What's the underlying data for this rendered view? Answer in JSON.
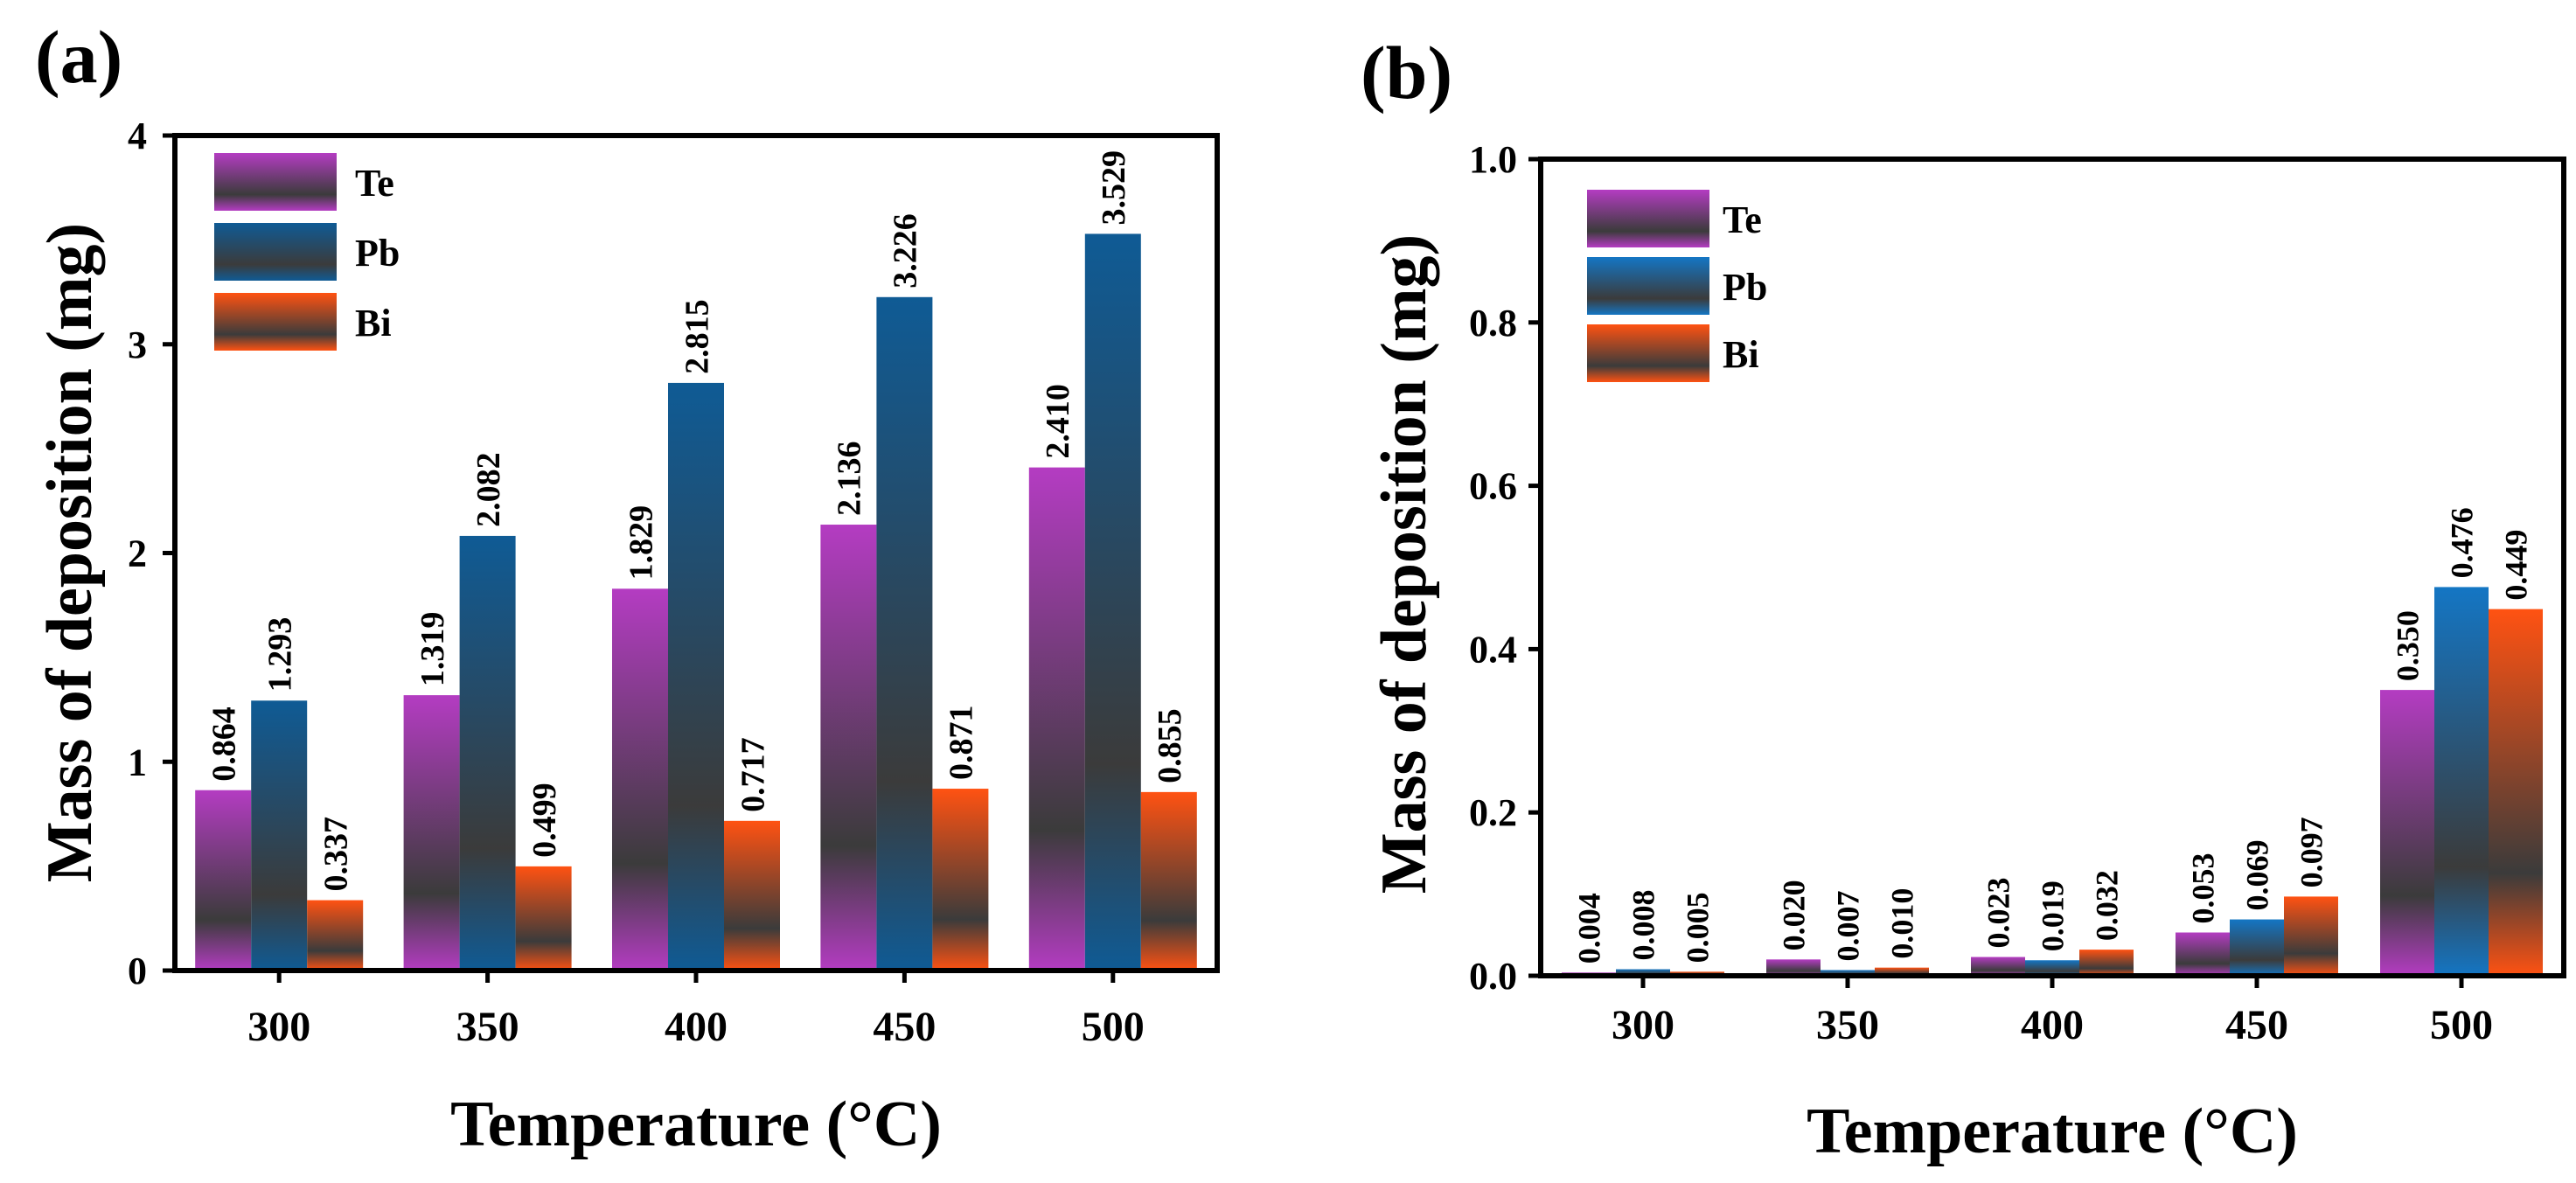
{
  "panels": [
    {
      "label": "(a)"
    },
    {
      "label": "(b)"
    }
  ],
  "colors": {
    "Te": "#b43cc2",
    "Pb": "#0f5b95",
    "Bi": "#ff5212",
    "Pb_b": "#1476c4",
    "fade": "#3b3b3b"
  },
  "chart_data": [
    {
      "type": "bar",
      "panel": "(a)",
      "categories": [
        "300",
        "350",
        "400",
        "450",
        "500"
      ],
      "series": [
        {
          "name": "Te",
          "values": [
            0.864,
            1.319,
            1.829,
            2.136,
            2.41
          ],
          "labels": [
            "0.864",
            "1.319",
            "1.829",
            "2.136",
            "2.410"
          ]
        },
        {
          "name": "Pb",
          "values": [
            1.293,
            2.082,
            2.815,
            3.226,
            3.529
          ],
          "labels": [
            "1.293",
            "2.082",
            "2.815",
            "3.226",
            "3.529"
          ]
        },
        {
          "name": "Bi",
          "values": [
            0.337,
            0.499,
            0.717,
            0.871,
            0.855
          ],
          "labels": [
            "0.337",
            "0.499",
            "0.717",
            "0.871",
            "0.855"
          ]
        }
      ],
      "xlabel": "Temperature (°C)",
      "ylabel": "Mass of deposition (mg)",
      "ylim": [
        0,
        4
      ],
      "yticks": [
        "0",
        "1",
        "2",
        "3",
        "4"
      ],
      "legend": "top-left"
    },
    {
      "type": "bar",
      "panel": "(b)",
      "categories": [
        "300",
        "350",
        "400",
        "450",
        "500"
      ],
      "series": [
        {
          "name": "Te",
          "values": [
            0.004,
            0.02,
            0.023,
            0.053,
            0.35
          ],
          "labels": [
            "0.004",
            "0.020",
            "0.023",
            "0.053",
            "0.350"
          ]
        },
        {
          "name": "Pb",
          "values": [
            0.008,
            0.007,
            0.019,
            0.069,
            0.476
          ],
          "labels": [
            "0.008",
            "0.007",
            "0.019",
            "0.069",
            "0.476"
          ]
        },
        {
          "name": "Bi",
          "values": [
            0.005,
            0.01,
            0.032,
            0.097,
            0.449
          ],
          "labels": [
            "0.005",
            "0.010",
            "0.032",
            "0.097",
            "0.449"
          ]
        }
      ],
      "xlabel": "Temperature (°C)",
      "ylabel": "Mass of deposition (mg)",
      "ylim": [
        0,
        1.0
      ],
      "yticks": [
        "0.0",
        "0.2",
        "0.4",
        "0.6",
        "0.8",
        "1.0"
      ],
      "legend": "top-left"
    }
  ]
}
